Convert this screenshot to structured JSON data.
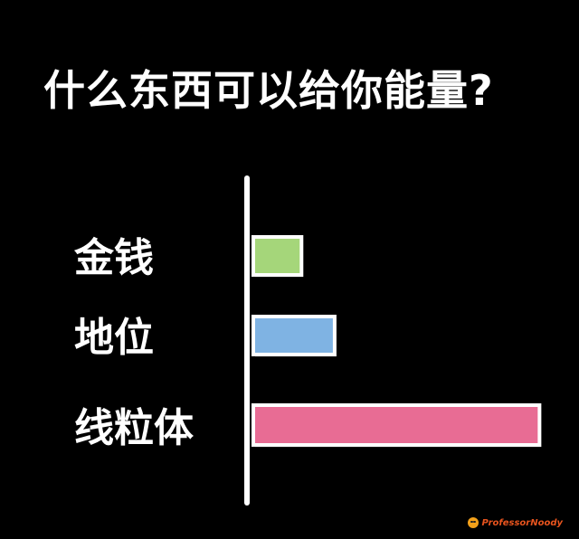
{
  "chart_data": {
    "type": "bar",
    "orientation": "horizontal",
    "title": "什么东西可以给你能量?",
    "categories": [
      "金钱",
      "地位",
      "线粒体"
    ],
    "values": [
      1.6,
      2.7,
      9.5
    ],
    "xlim": [
      0,
      10
    ],
    "grid": false,
    "legend": "none",
    "colors": [
      "#a5d67a",
      "#7fb3e3",
      "#e86c94"
    ]
  },
  "watermark": {
    "text": "ProfessorNoody",
    "icon": "smiley-face-icon"
  }
}
